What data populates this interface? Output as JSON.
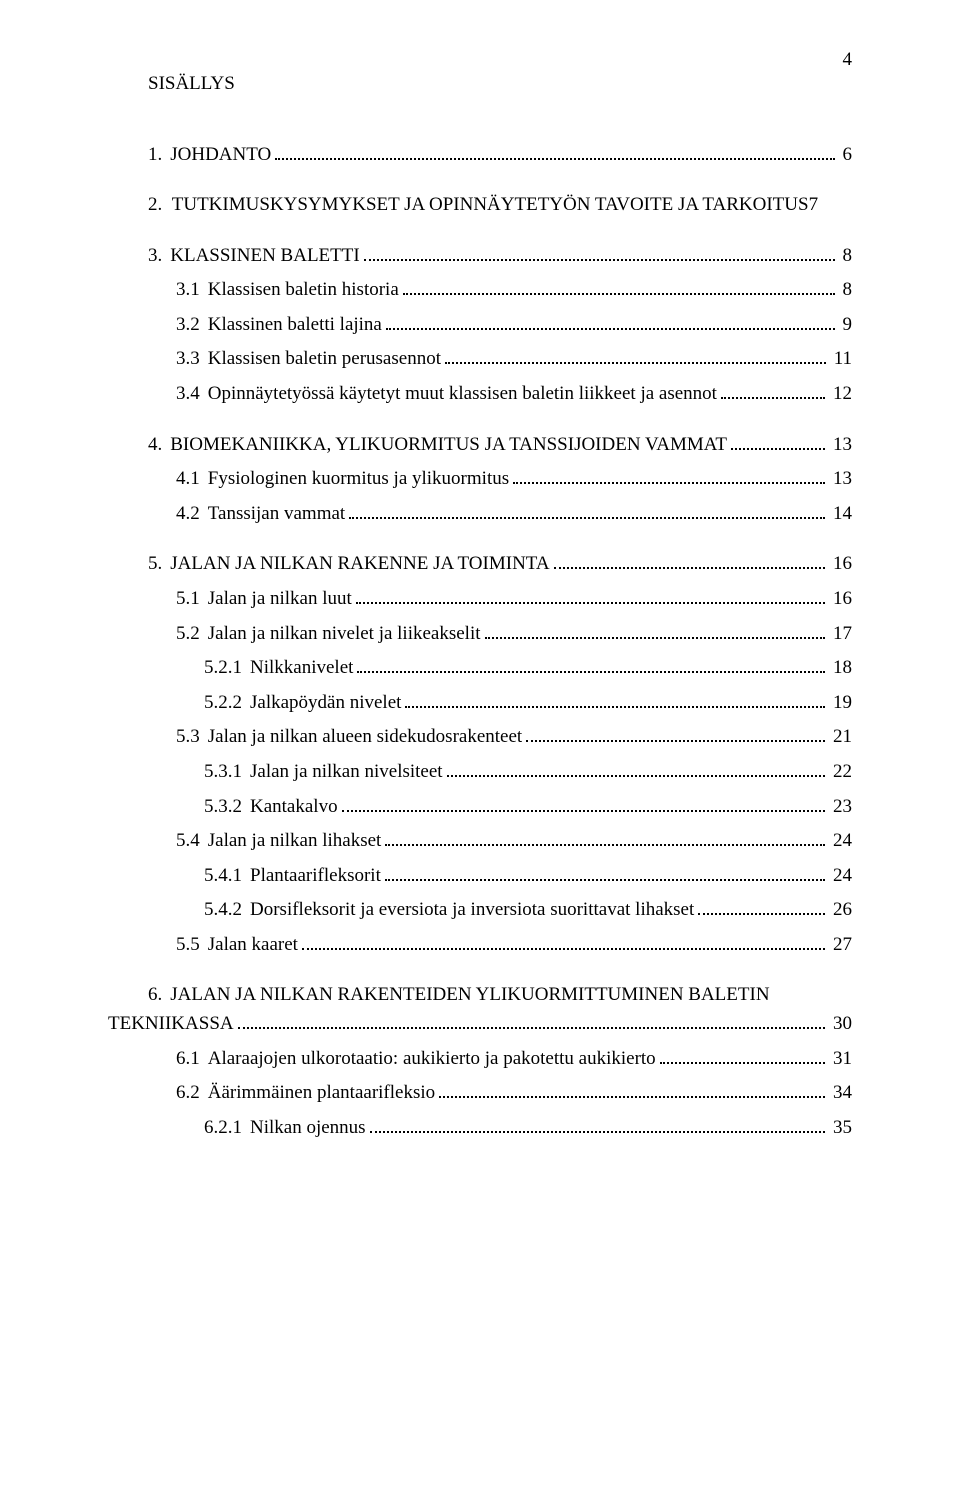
{
  "page_number": "4",
  "title": "SISÄLLYS",
  "toc": [
    {
      "num": "1.",
      "label": "JOHDANTO",
      "page": "6",
      "level": 0,
      "gap": "block"
    },
    {
      "num": "2.",
      "label": "TUTKIMUSKYSYMYKSET JA OPINNÄYTETYÖN TAVOITE JA TARKOITUS",
      "page": "7",
      "level": 0,
      "gap": "block",
      "noleader": true
    },
    {
      "num": "3.",
      "label": "KLASSINEN BALETTI",
      "page": "8",
      "level": 0,
      "gap": "block"
    },
    {
      "num": "3.1",
      "label": "Klassisen baletin historia",
      "page": "8",
      "level": 1,
      "gap": "line"
    },
    {
      "num": "3.2",
      "label": "Klassinen baletti lajina",
      "page": "9",
      "level": 1,
      "gap": "line"
    },
    {
      "num": "3.3",
      "label": "Klassisen baletin perusasennot",
      "page": "11",
      "level": 1,
      "gap": "line"
    },
    {
      "num": "3.4",
      "label": "Opinnäytetyössä käytetyt muut klassisen baletin liikkeet ja asennot",
      "page": "12",
      "level": 1,
      "gap": "line"
    },
    {
      "num": "4.",
      "label": "BIOMEKANIIKKA, YLIKUORMITUS JA TANSSIJOIDEN VAMMAT",
      "page": "13",
      "level": 0,
      "gap": "block"
    },
    {
      "num": "4.1",
      "label": "Fysiologinen kuormitus ja ylikuormitus",
      "page": "13",
      "level": 1,
      "gap": "line"
    },
    {
      "num": "4.2",
      "label": "Tanssijan vammat",
      "page": "14",
      "level": 1,
      "gap": "line"
    },
    {
      "num": "5.",
      "label": "JALAN JA NILKAN RAKENNE JA TOIMINTA",
      "page": "16",
      "level": 0,
      "gap": "block"
    },
    {
      "num": "5.1",
      "label": "Jalan ja nilkan luut",
      "page": "16",
      "level": 1,
      "gap": "line"
    },
    {
      "num": "5.2",
      "label": "Jalan ja nilkan nivelet ja liikeakselit",
      "page": "17",
      "level": 1,
      "gap": "line"
    },
    {
      "num": "5.2.1",
      "label": "Nilkkanivelet",
      "page": "18",
      "level": 2,
      "gap": "line"
    },
    {
      "num": "5.2.2",
      "label": "Jalkapöydän nivelet",
      "page": "19",
      "level": 2,
      "gap": "line"
    },
    {
      "num": "5.3",
      "label": "Jalan ja nilkan alueen sidekudosrakenteet",
      "page": "21",
      "level": 1,
      "gap": "line"
    },
    {
      "num": "5.3.1",
      "label": "Jalan ja nilkan nivelsiteet",
      "page": "22",
      "level": 2,
      "gap": "line"
    },
    {
      "num": "5.3.2",
      "label": "Kantakalvo",
      "page": "23",
      "level": 2,
      "gap": "line"
    },
    {
      "num": "5.4",
      "label": "Jalan ja nilkan lihakset",
      "page": "24",
      "level": 1,
      "gap": "line"
    },
    {
      "num": "5.4.1",
      "label": "Plantaarifleksorit",
      "page": "24",
      "level": 2,
      "gap": "line"
    },
    {
      "num": "5.4.2",
      "label": "Dorsifleksorit ja eversiota ja inversiota suorittavat lihakset",
      "page": "26",
      "level": 2,
      "gap": "line"
    },
    {
      "num": "5.5",
      "label": "Jalan kaaret",
      "page": "27",
      "level": 1,
      "gap": "line"
    },
    {
      "num": "6.",
      "label_line1": "JALAN JA NILKAN RAKENTEIDEN YLIKUORMITTUMINEN BALETIN",
      "label_line2": "TEKNIIKASSA",
      "page": "30",
      "level": 0,
      "gap": "block",
      "twoline": true
    },
    {
      "num": "6.1",
      "label": "Alaraajojen ulkorotaatio: aukikierto ja pakotettu aukikierto",
      "page": "31",
      "level": 1,
      "gap": "line"
    },
    {
      "num": "6.2",
      "label": "Äärimmäinen plantaarifleksio",
      "page": "34",
      "level": 1,
      "gap": "line"
    },
    {
      "num": "6.2.1",
      "label": "Nilkan ojennus",
      "page": "35",
      "level": 2,
      "gap": "line"
    }
  ]
}
